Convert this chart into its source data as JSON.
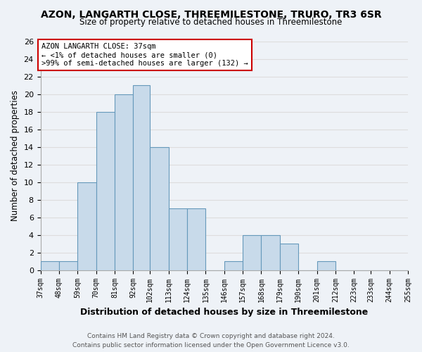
{
  "title": "AZON, LANGARTH CLOSE, THREEMILESTONE, TRURO, TR3 6SR",
  "subtitle": "Size of property relative to detached houses in Threemilestone",
  "xlabel": "Distribution of detached houses by size in Threemilestone",
  "ylabel": "Number of detached properties",
  "bar_color": "#c8daea",
  "bar_edge_color": "#6699bb",
  "bin_labels": [
    "37sqm",
    "48sqm",
    "59sqm",
    "70sqm",
    "81sqm",
    "92sqm",
    "102sqm",
    "113sqm",
    "124sqm",
    "135sqm",
    "146sqm",
    "157sqm",
    "168sqm",
    "179sqm",
    "190sqm",
    "201sqm",
    "212sqm",
    "223sqm",
    "233sqm",
    "244sqm",
    "255sqm"
  ],
  "bin_edges": [
    37,
    48,
    59,
    70,
    81,
    92,
    102,
    113,
    124,
    135,
    146,
    157,
    168,
    179,
    190,
    201,
    212,
    223,
    233,
    244,
    255
  ],
  "counts": [
    1,
    1,
    10,
    18,
    20,
    21,
    14,
    7,
    7,
    0,
    1,
    4,
    4,
    3,
    0,
    1,
    0,
    0,
    0,
    0
  ],
  "ylim": [
    0,
    26
  ],
  "yticks": [
    0,
    2,
    4,
    6,
    8,
    10,
    12,
    14,
    16,
    18,
    20,
    22,
    24,
    26
  ],
  "annotation_title": "AZON LANGARTH CLOSE: 37sqm",
  "annotation_line1": "← <1% of detached houses are smaller (0)",
  "annotation_line2": ">99% of semi-detached houses are larger (132) →",
  "annotation_box_color": "#ffffff",
  "annotation_box_edge": "#cc0000",
  "footer1": "Contains HM Land Registry data © Crown copyright and database right 2024.",
  "footer2": "Contains public sector information licensed under the Open Government Licence v3.0.",
  "grid_color": "#dddddd",
  "bg_color": "#eef2f7"
}
